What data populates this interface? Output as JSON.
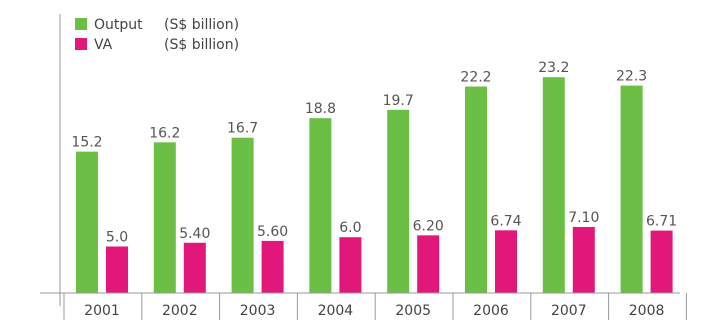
{
  "chart_data": {
    "type": "bar",
    "categories": [
      "2001",
      "2002",
      "2003",
      "2004",
      "2005",
      "2006",
      "2007",
      "2008"
    ],
    "series": [
      {
        "name": "Output",
        "unit": "(S$ billion)",
        "color": "#6cbf45",
        "values": [
          15.2,
          16.2,
          16.7,
          18.8,
          19.7,
          22.2,
          23.2,
          22.3
        ],
        "labels": [
          "15.2",
          "16.2",
          "16.7",
          "18.8",
          "19.7",
          "22.2",
          "23.2",
          "22.3"
        ]
      },
      {
        "name": "VA",
        "unit": "(S$ billion)",
        "color": "#e2177a",
        "values": [
          5.0,
          5.4,
          5.6,
          6.0,
          6.2,
          6.74,
          7.1,
          6.71
        ],
        "labels": [
          "5.0",
          "5.40",
          "5.60",
          "6.0",
          "6.20",
          "6.74",
          "7.10",
          "6.71"
        ]
      }
    ],
    "title": "",
    "xlabel": "",
    "ylabel": "",
    "ylim": [
      0,
      25
    ],
    "grid": false,
    "legend": "top-left"
  }
}
